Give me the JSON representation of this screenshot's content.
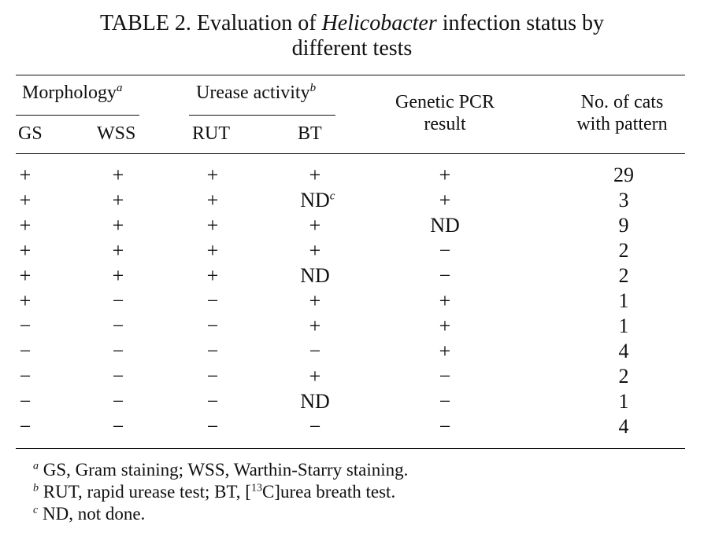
{
  "title": {
    "prefix": "TABLE 2. Evaluation of ",
    "italic": "Helicobacter",
    "suffix": " infection status by",
    "line2": "different tests"
  },
  "headers": {
    "morphology": "Morphology",
    "morphology_note": "a",
    "urease": "Urease activity",
    "urease_note": "b",
    "gs": "GS",
    "wss": "WSS",
    "rut": "RUT",
    "bt": "BT",
    "pcr_line1": "Genetic PCR",
    "pcr_line2": "result",
    "cats_line1": "No. of cats",
    "cats_line2": "with pattern"
  },
  "rows": [
    {
      "gs": "+",
      "wss": "+",
      "rut": "+",
      "bt": "+",
      "bt_note": "",
      "pcr": "+",
      "cats": "29"
    },
    {
      "gs": "+",
      "wss": "+",
      "rut": "+",
      "bt": "ND",
      "bt_note": "c",
      "pcr": "+",
      "cats": "3"
    },
    {
      "gs": "+",
      "wss": "+",
      "rut": "+",
      "bt": "+",
      "bt_note": "",
      "pcr": "ND",
      "cats": "9"
    },
    {
      "gs": "+",
      "wss": "+",
      "rut": "+",
      "bt": "+",
      "bt_note": "",
      "pcr": "−",
      "cats": "2"
    },
    {
      "gs": "+",
      "wss": "+",
      "rut": "+",
      "bt": "ND",
      "bt_note": "",
      "pcr": "−",
      "cats": "2"
    },
    {
      "gs": "+",
      "wss": "−",
      "rut": "−",
      "bt": "+",
      "bt_note": "",
      "pcr": "+",
      "cats": "1"
    },
    {
      "gs": "−",
      "wss": "−",
      "rut": "−",
      "bt": "+",
      "bt_note": "",
      "pcr": "+",
      "cats": "1"
    },
    {
      "gs": "−",
      "wss": "−",
      "rut": "−",
      "bt": "−",
      "bt_note": "",
      "pcr": "+",
      "cats": "4"
    },
    {
      "gs": "−",
      "wss": "−",
      "rut": "−",
      "bt": "+",
      "bt_note": "",
      "pcr": "−",
      "cats": "2"
    },
    {
      "gs": "−",
      "wss": "−",
      "rut": "−",
      "bt": "ND",
      "bt_note": "",
      "pcr": "−",
      "cats": "1"
    },
    {
      "gs": "−",
      "wss": "−",
      "rut": "−",
      "bt": "−",
      "bt_note": "",
      "pcr": "−",
      "cats": "4"
    }
  ],
  "footnotes": [
    {
      "mark": "a",
      "text": "GS, Gram staining; WSS, Warthin-Starry staining."
    },
    {
      "mark": "b",
      "text_before": "RUT, rapid urease test; BT, [",
      "sup": "13",
      "text_after": "C]urea breath test."
    },
    {
      "mark": "c",
      "text": "ND, not done."
    }
  ]
}
